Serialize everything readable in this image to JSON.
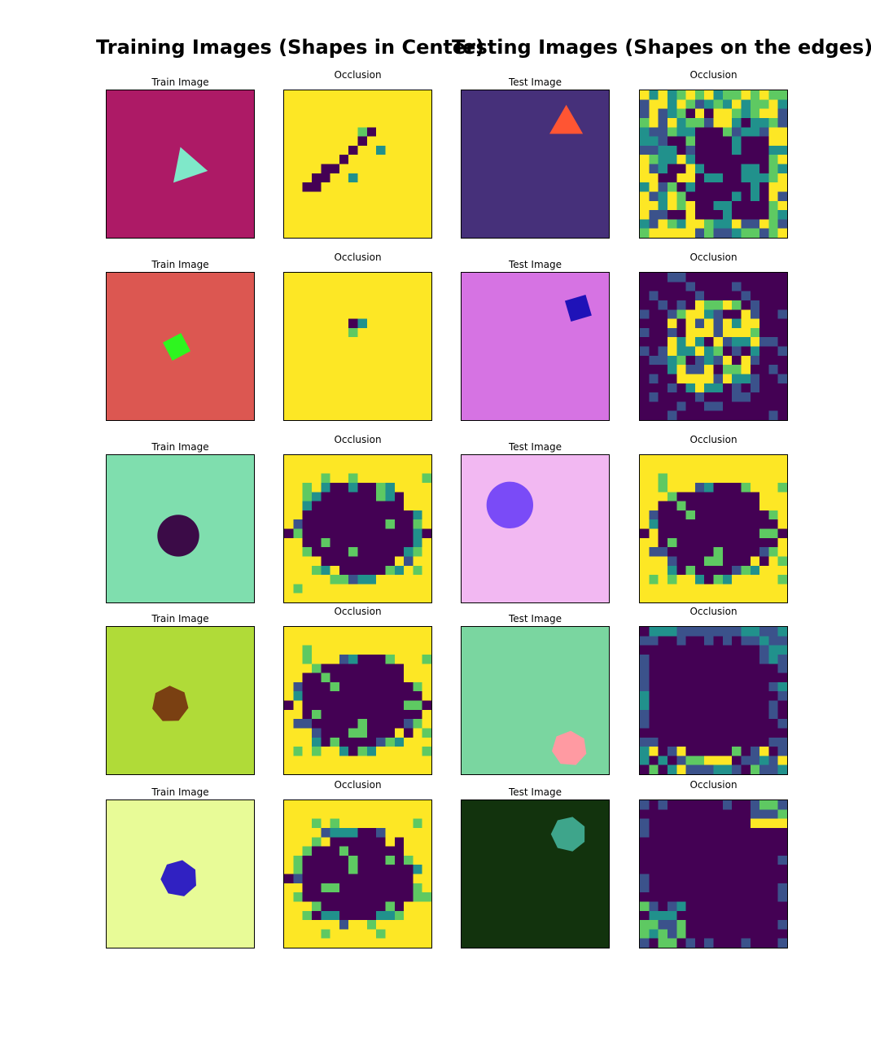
{
  "titles": {
    "training": "Training Images (Shapes in Center)",
    "testing": "Testing  Images (Shapes on the edges)"
  },
  "labels": {
    "train_image": "Train Image",
    "test_image": "Test Image",
    "occlusion": "Occlusion"
  },
  "colors": {
    "viridis_dark": "#440154",
    "viridis_blue": "#3b528b",
    "viridis_teal": "#21918c",
    "viridis_green": "#5ec962",
    "viridis_yellow": "#fde725"
  },
  "chart_data": {
    "type": "heatmap",
    "grid_size": 16,
    "colormap": "viridis",
    "rows": [
      {
        "train": {
          "label": "Train Image",
          "background": "#ad1a66",
          "shape": "triangle",
          "shape_color": "#7fe8c9"
        },
        "train_occlusion": {
          "label": "Occlusion",
          "background_level": 1.0,
          "dark_cells": [
            [
              4,
              9
            ],
            [
              5,
              8
            ],
            [
              6,
              7
            ],
            [
              7,
              6
            ],
            [
              8,
              5
            ],
            [
              8,
              4
            ],
            [
              9,
              4
            ],
            [
              9,
              3
            ],
            [
              10,
              3
            ],
            [
              10,
              2
            ]
          ],
          "teal_cells": [
            [
              9,
              7
            ],
            [
              6,
              10
            ]
          ],
          "green_cells": [
            [
              4,
              8
            ],
            [
              5,
              8
            ]
          ]
        },
        "test": {
          "label": "Test Image",
          "background": "#46307a",
          "shape": "triangle",
          "shape_color": "#ff5533"
        },
        "test_occlusion": {
          "label": "Occlusion",
          "background_level": 0.5,
          "pattern": "noisy-dark-interior"
        }
      },
      {
        "train": {
          "label": "Train Image",
          "background": "#dc5751",
          "shape": "square",
          "shape_color": "#2ef51f"
        },
        "train_occlusion": {
          "label": "Occlusion",
          "background_level": 1.0,
          "dark_cells": [
            [
              5,
              7
            ]
          ],
          "teal_cells": [
            [
              5,
              8
            ]
          ],
          "green_cells": [
            [
              6,
              7
            ]
          ]
        },
        "test": {
          "label": "Test Image",
          "background": "#d673e3",
          "shape": "square",
          "shape_color": "#1f12b8"
        },
        "test_occlusion": {
          "label": "Occlusion",
          "background_level": 0.0,
          "pattern": "noisy-bright-center"
        }
      },
      {
        "train": {
          "label": "Train Image",
          "background": "#7fdeae",
          "shape": "circle",
          "shape_color": "#3b0b47"
        },
        "train_occlusion": {
          "label": "Occlusion",
          "background_level": 1.0,
          "pattern": "dark-blob-center"
        },
        "test": {
          "label": "Test Image",
          "background": "#f2b8f2",
          "shape": "circle",
          "shape_color": "#7a4bf7"
        },
        "test_occlusion": {
          "label": "Occlusion",
          "background_level": 1.0,
          "pattern": "dark-blob-center"
        }
      },
      {
        "train": {
          "label": "Train Image",
          "background": "#b0db38",
          "shape": "heptagon",
          "shape_color": "#7a4012"
        },
        "train_occlusion": {
          "label": "Occlusion",
          "background_level": 1.0,
          "pattern": "dark-blob-center"
        },
        "test": {
          "label": "Test Image",
          "background": "#7ad6a0",
          "shape": "heptagon",
          "shape_color": "#ff9aa2"
        },
        "test_occlusion": {
          "label": "Occlusion",
          "background_level": 0.0,
          "pattern": "dark-with-border-noise"
        }
      },
      {
        "train": {
          "label": "Train Image",
          "background": "#e8fb97",
          "shape": "heptagon",
          "shape_color": "#3021c2"
        },
        "train_occlusion": {
          "label": "Occlusion",
          "background_level": 1.0,
          "pattern": "dark-blob-center"
        },
        "test": {
          "label": "Test Image",
          "background": "#12330d",
          "shape": "heptagon",
          "shape_color": "#3ea58b"
        },
        "test_occlusion": {
          "label": "Occlusion",
          "background_level": 0.0,
          "pattern": "dark-with-corner-noise"
        }
      }
    ]
  }
}
